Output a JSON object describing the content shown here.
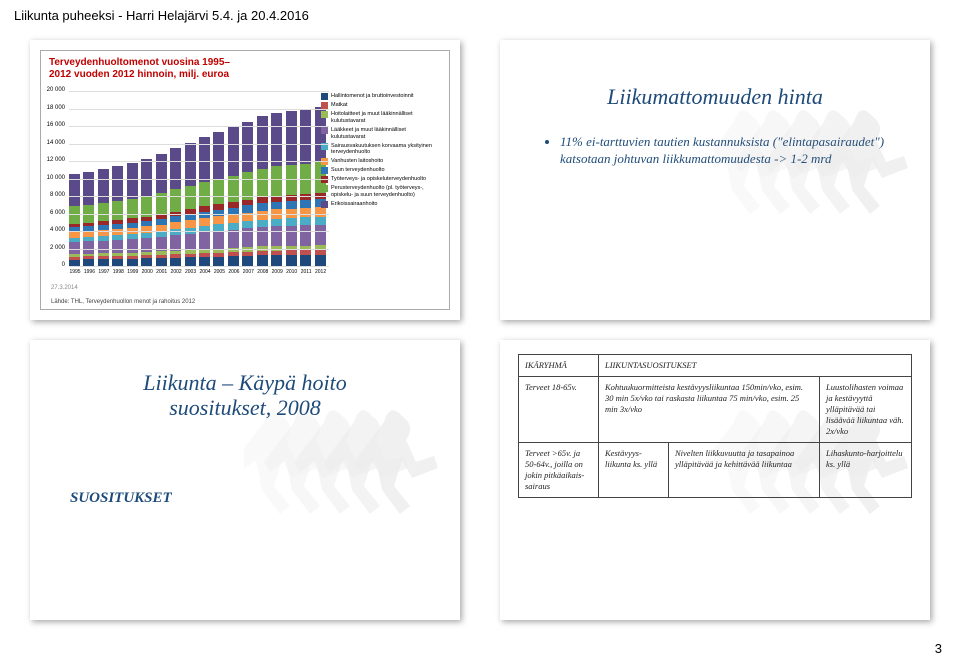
{
  "header": "Liikunta puheeksi - Harri Helajärvi 5.4. ja 20.4.2016",
  "page_number": "3",
  "slide1": {
    "chart_title_l1": "Terveydenhuoltomenot vuosina 1995–",
    "chart_title_l2": "2012 vuoden 2012 hinnoin, milj. euroa",
    "y_ticks": [
      "0",
      "2 000",
      "4 000",
      "6 000",
      "8 000",
      "10 000",
      "12 000",
      "14 000",
      "16 000",
      "18 000",
      "20 000"
    ],
    "years": [
      "1995",
      "1996",
      "1997",
      "1998",
      "1999",
      "2000",
      "2001",
      "2002",
      "2003",
      "2004",
      "2005",
      "2006",
      "2007",
      "2008",
      "2009",
      "2010",
      "2011",
      "2012"
    ],
    "totals": [
      10500,
      10800,
      11100,
      11400,
      11800,
      12200,
      12800,
      13500,
      14100,
      14800,
      15300,
      15900,
      16500,
      17100,
      17500,
      17700,
      17900,
      18200
    ],
    "segments": [
      {
        "label": "Hallintomenot ja bruttoinvestoinnit",
        "color": "#1f497d",
        "frac": 0.07
      },
      {
        "label": "Matkat",
        "color": "#c0504d",
        "frac": 0.03
      },
      {
        "label": "Hoitolaitteet ja muut lääkinnälliset kulutustavarat",
        "color": "#9bbb59",
        "frac": 0.03
      },
      {
        "label": "Lääkkeet ja muut lääkinnälliset kulutustavarat",
        "color": "#8064a2",
        "frac": 0.13
      },
      {
        "label": "Sairausvakuutuksen korvaama yksityinen terveydenhuolto",
        "color": "#4bacc6",
        "frac": 0.05
      },
      {
        "label": "Vanhusten laitoshoito",
        "color": "#f79646",
        "frac": 0.06
      },
      {
        "label": "Suun terveydenhuolto",
        "color": "#2e75b6",
        "frac": 0.05
      },
      {
        "label": "Työterveys- ja opiskeluterveydenhuolto",
        "color": "#9a2828",
        "frac": 0.04
      },
      {
        "label": "Perusterveydenhuolto (pl. työterveys-, opiskelu- ja suun terveydenhuolto)",
        "color": "#70ad47",
        "frac": 0.19
      },
      {
        "label": "Erikoissairaanhoito",
        "color": "#5b4a8a",
        "frac": 0.35
      }
    ],
    "chart_date": "27.3.2014",
    "chart_srcnote": "Lähde: THL, Terveydenhuollon menot ja rahoitus 2012"
  },
  "slide2": {
    "title": "Liikumattomuuden hinta",
    "bullet": "11% ei-tarttuvien tautien kustannuksista (\"elintapasairaudet\") katsotaan johtuvan liikkumattomuudesta -> 1-2 mrd"
  },
  "slide3": {
    "title_l1": "Liikunta – Käypä hoito",
    "title_l2": "suositukset, 2008",
    "label": "SUOSITUKSET"
  },
  "slide4": {
    "head_col1": "IKÄRYHMÄ",
    "head_col2": "LIIKUNTASUOSITUKSET",
    "r1c1": "Terveet 18-65v.",
    "r1c2": "Kohtuukuormitteista kestävyysliikuntaa 150min/vko, esim. 30 min 5x/vko tai raskasta liikuntaa 75 min/vko, esim. 25 min 3x/vko",
    "r1c3": "Luustolihasten voimaa ja kestävyyttä ylläpitävää tai lisäävää liikuntaa väh. 2x/vko",
    "r2c1": "Terveet >65v. ja 50-64v., joilla on jokin pitkäaikais-sairaus",
    "r2c2a": "Kestävyys-liikunta ks. yllä",
    "r2c2b": "Nivelten liikkuvuutta ja tasapainoa ylläpitävää ja kehittävää liikuntaa",
    "r2c3": "Lihaskunto-harjoittelu ks. yllä"
  }
}
